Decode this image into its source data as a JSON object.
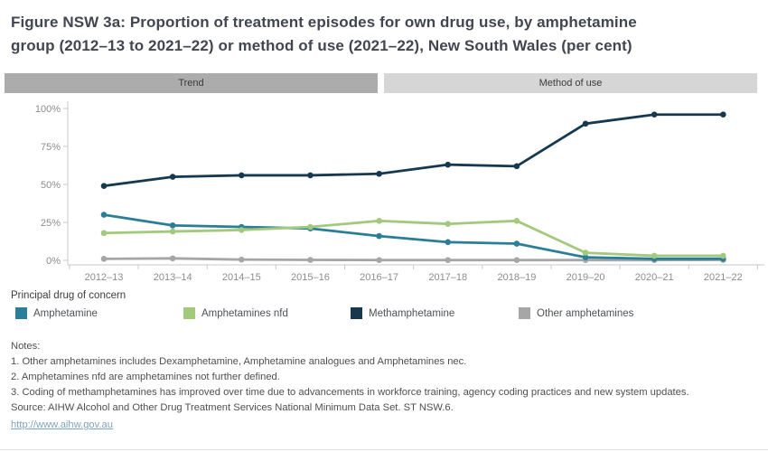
{
  "title": {
    "line1": "Figure NSW 3a: Proportion of treatment episodes for own drug use, by amphetamine",
    "line2": "group (2012–13 to 2021–22) or method of use (2021–22), New South Wales (per cent)"
  },
  "tabs": [
    {
      "label": "Trend",
      "selected": true
    },
    {
      "label": "Method of use",
      "selected": false
    }
  ],
  "chart_data": {
    "type": "line",
    "title": "Proportion of treatment episodes for own drug use, by amphetamine group, New South Wales",
    "x": [
      "2012–13",
      "2013–14",
      "2014–15",
      "2015–16",
      "2016–17",
      "2017–18",
      "2018–19",
      "2019–20",
      "2020–21",
      "2021–22"
    ],
    "xlabel": "",
    "ylabel": "",
    "ylim": [
      0,
      100
    ],
    "yticks": [
      {
        "value": 0,
        "label": "0%"
      },
      {
        "value": 25,
        "label": "25%"
      },
      {
        "value": 50,
        "label": "50%"
      },
      {
        "value": 75,
        "label": "75%"
      },
      {
        "value": 100,
        "label": "100%"
      }
    ],
    "grid": false,
    "legend_position": "bottom",
    "legend_title": "Principal drug of concern",
    "series": [
      {
        "name": "Other amphetamines",
        "color": "#a6a6a6",
        "values": [
          1,
          1.3,
          0.5,
          0.3,
          0.2,
          0.2,
          0.2,
          0.2,
          0.2,
          0.3
        ]
      },
      {
        "name": "Amphetamine",
        "color": "#2b7e98",
        "values": [
          30,
          23,
          22,
          21,
          16,
          12,
          11,
          2,
          1,
          1
        ]
      },
      {
        "name": "Amphetamines nfd",
        "color": "#a2c97c",
        "values": [
          18,
          19,
          20,
          22,
          26,
          24,
          26,
          5,
          3,
          3
        ]
      },
      {
        "name": "Methamphetamine",
        "color": "#17394f",
        "values": [
          49,
          55,
          56,
          56,
          57,
          63,
          62,
          90,
          96,
          96
        ]
      }
    ],
    "legend_order": [
      "Amphetamine",
      "Amphetamines nfd",
      "Methamphetamine",
      "Other amphetamines"
    ]
  },
  "notes": {
    "heading": "Notes:",
    "note1": "1. Other amphetamines includes Dexamphetamine, Amphetamine analogues and Amphetamines nec.",
    "note2": "2. Amphetamines nfd are amphetamines not further defined.",
    "note3": "3. Coding of methamphetamines has improved over time due to advancements in workforce training, agency coding practices and new system updates.",
    "source": "Source: AIHW Alcohol and Other Drug Treatment Services National Minimum Data Set. ST NSW.6.",
    "link": "http://www.aihw.gov.au"
  },
  "colors": {
    "tab_selected": "#acacac",
    "tab_unselected": "#d6d6d6",
    "axis_text": "#8c8c8c",
    "axis_line": "#c9c9c9",
    "title_text": "#414651",
    "link": "#7fa4bc"
  }
}
